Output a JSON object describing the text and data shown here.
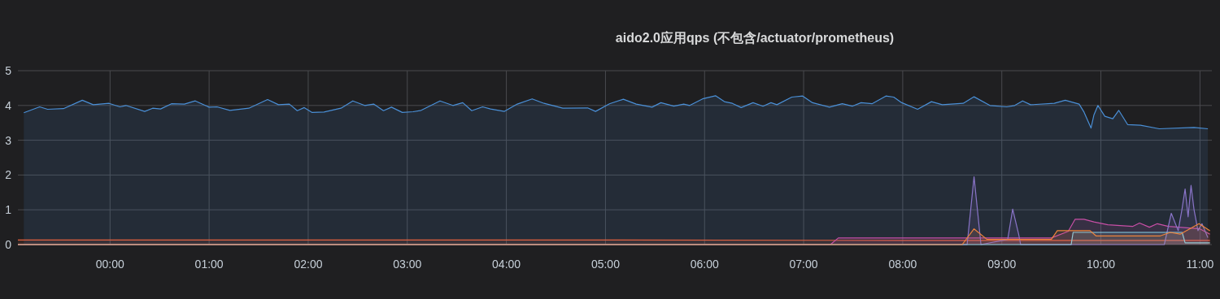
{
  "chart_data": {
    "type": "area",
    "title": "aido2.0应用qps (不包含/actuator/prometheus)",
    "xlim": [
      -0.93,
      11.12
    ],
    "ylim": [
      0,
      5
    ],
    "yticks": [
      0,
      1,
      2,
      3,
      4,
      5
    ],
    "xticks": [
      {
        "value": 0,
        "label": "00:00"
      },
      {
        "value": 1,
        "label": "01:00"
      },
      {
        "value": 2,
        "label": "02:00"
      },
      {
        "value": 3,
        "label": "03:00"
      },
      {
        "value": 4,
        "label": "04:00"
      },
      {
        "value": 5,
        "label": "05:00"
      },
      {
        "value": 6,
        "label": "06:00"
      },
      {
        "value": 7,
        "label": "07:00"
      },
      {
        "value": 8,
        "label": "08:00"
      },
      {
        "value": 9,
        "label": "09:00"
      },
      {
        "value": 10,
        "label": "10:00"
      },
      {
        "value": 11,
        "label": "11:00"
      }
    ],
    "grid": true,
    "series": [
      {
        "color": "#4a8fd6",
        "x": [
          -0.87,
          -0.71,
          -0.63,
          -0.47,
          -0.28,
          -0.17,
          -0.01,
          0.1,
          0.16,
          0.35,
          0.43,
          0.51,
          0.62,
          0.75,
          0.86,
          1.0,
          1.08,
          1.21,
          1.4,
          1.59,
          1.7,
          1.81,
          1.89,
          1.96,
          2.04,
          2.16,
          2.33,
          2.45,
          2.57,
          2.66,
          2.76,
          2.84,
          2.95,
          3.06,
          3.14,
          3.33,
          3.46,
          3.56,
          3.65,
          3.76,
          3.84,
          3.98,
          4.11,
          4.26,
          4.38,
          4.57,
          4.82,
          4.9,
          5.04,
          5.18,
          5.31,
          5.47,
          5.56,
          5.69,
          5.79,
          5.85,
          5.98,
          6.11,
          6.2,
          6.28,
          6.37,
          6.49,
          6.59,
          6.67,
          6.73,
          6.88,
          6.99,
          7.09,
          7.26,
          7.39,
          7.49,
          7.58,
          7.69,
          7.83,
          7.91,
          7.99,
          8.15,
          8.29,
          8.4,
          8.61,
          8.72,
          8.88,
          9.05,
          9.13,
          9.21,
          9.29,
          9.53,
          9.64,
          9.78,
          9.83,
          9.9,
          9.93,
          9.97,
          10.04,
          10.12,
          10.18,
          10.27,
          10.4,
          10.59,
          10.94,
          11.08
        ],
        "values": [
          3.79,
          3.96,
          3.89,
          3.91,
          4.15,
          4.02,
          4.06,
          3.96,
          4.0,
          3.83,
          3.92,
          3.9,
          4.05,
          4.04,
          4.13,
          3.95,
          3.96,
          3.86,
          3.92,
          4.17,
          4.02,
          4.04,
          3.85,
          3.94,
          3.8,
          3.81,
          3.92,
          4.13,
          4.0,
          4.04,
          3.85,
          3.95,
          3.8,
          3.82,
          3.86,
          4.13,
          4.0,
          4.08,
          3.85,
          3.96,
          3.9,
          3.83,
          4.04,
          4.19,
          4.06,
          3.92,
          3.93,
          3.83,
          4.05,
          4.18,
          4.04,
          3.95,
          4.08,
          3.98,
          4.04,
          4.0,
          4.19,
          4.28,
          4.11,
          4.06,
          3.94,
          4.08,
          3.98,
          4.08,
          4.02,
          4.24,
          4.27,
          4.08,
          3.95,
          4.05,
          3.98,
          4.08,
          4.05,
          4.27,
          4.24,
          4.08,
          3.89,
          4.11,
          4.02,
          4.06,
          4.25,
          4.0,
          3.96,
          4.0,
          4.13,
          4.02,
          4.06,
          4.15,
          4.04,
          3.81,
          3.35,
          3.73,
          4.0,
          3.69,
          3.62,
          3.86,
          3.45,
          3.43,
          3.33,
          3.37,
          3.33
        ]
      },
      {
        "color": "#e2603f",
        "x": [
          -0.93,
          2.0,
          5.0,
          8.0,
          9.5,
          11.1
        ],
        "values": [
          0.13,
          0.13,
          0.13,
          0.12,
          0.12,
          0.12
        ]
      },
      {
        "color": "#c84fa6",
        "x": [
          -0.93,
          7.27,
          7.35,
          8.61,
          9.5,
          9.67,
          9.74,
          9.83,
          9.93,
          10.07,
          10.32,
          10.39,
          10.49,
          10.57,
          10.68,
          11.0,
          11.1
        ],
        "values": [
          0,
          0,
          0.19,
          0.19,
          0.19,
          0.38,
          0.73,
          0.73,
          0.65,
          0.57,
          0.52,
          0.62,
          0.5,
          0.6,
          0.52,
          0.45,
          0.3
        ]
      },
      {
        "color": "#8a75c9",
        "x": [
          -0.93,
          8.65,
          8.72,
          8.79,
          9.06,
          9.11,
          9.17,
          9.19,
          10.64,
          10.71,
          10.78,
          10.82,
          10.85,
          10.88,
          10.91,
          10.94,
          10.98,
          11.02,
          11.08
        ],
        "values": [
          0,
          0,
          1.95,
          0,
          0.15,
          1.02,
          0.3,
          0,
          0,
          0.9,
          0.4,
          1.05,
          1.6,
          0.8,
          1.7,
          1.0,
          0.4,
          0.6,
          0.2
        ]
      },
      {
        "color": "#8ad2e8",
        "x": [
          -0.93,
          9.7,
          9.72,
          10.82,
          10.85,
          11.1
        ],
        "values": [
          0,
          0,
          0.35,
          0.35,
          0.05,
          0.05
        ]
      },
      {
        "color": "#ef843c",
        "x": [
          -0.93,
          8.6,
          8.72,
          8.85,
          9.5,
          9.56,
          9.89,
          9.95,
          10.6,
          10.7,
          10.8,
          10.99,
          11.1
        ],
        "values": [
          0,
          0,
          0.45,
          0.15,
          0.15,
          0.4,
          0.4,
          0.25,
          0.25,
          0.35,
          0.3,
          0.6,
          0.4
        ]
      }
    ]
  }
}
